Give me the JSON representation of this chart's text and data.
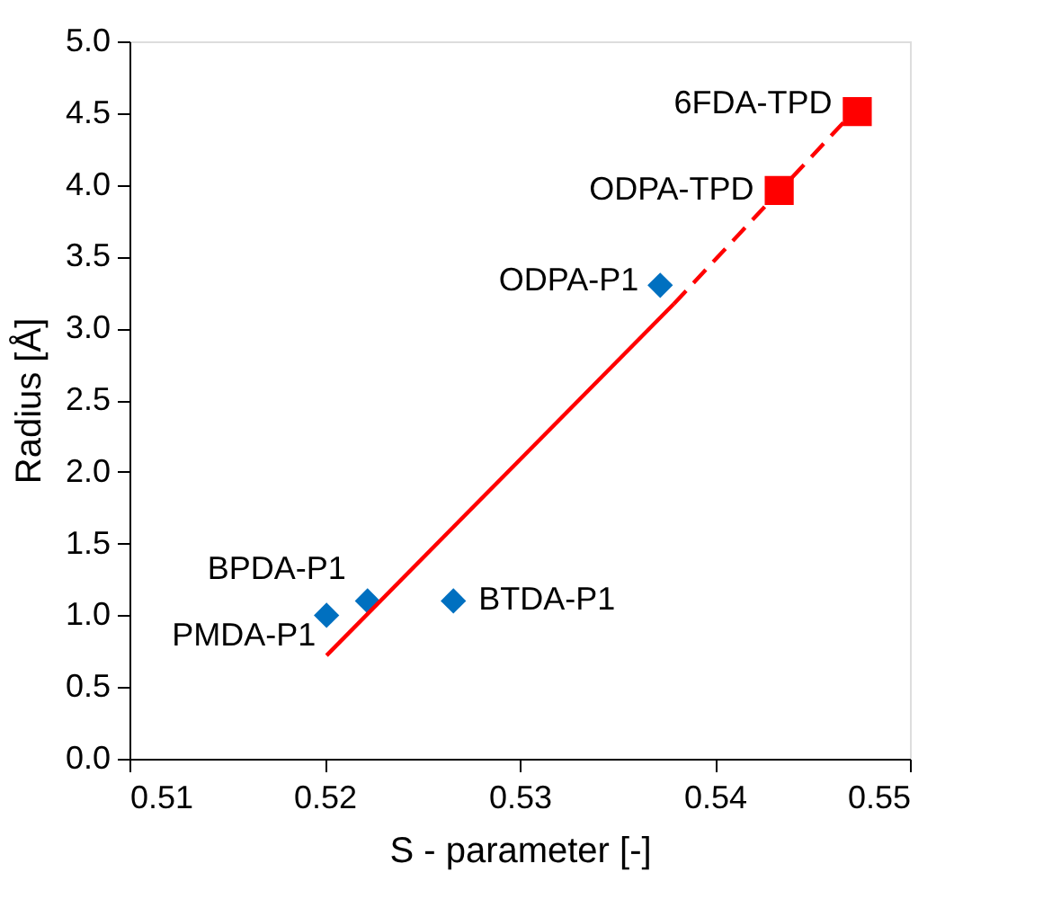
{
  "chart_data": {
    "type": "scatter",
    "xlabel": "S - parameter [-]",
    "ylabel": "Radius [Å]",
    "xlim": [
      0.51,
      0.55
    ],
    "xticks": [
      0.51,
      0.52,
      0.53,
      0.54,
      0.55
    ],
    "ylim": [
      0,
      5
    ],
    "yticks": [
      {
        "value": 0,
        "label": "0.0"
      },
      {
        "value": 0.5,
        "label": "0.5"
      },
      {
        "value": 1,
        "label": "1.0"
      },
      {
        "value": 1.5,
        "label": "1.5"
      },
      {
        "value": 2,
        "label": "2.0"
      },
      {
        "value": 2.5,
        "label": "2.5"
      },
      {
        "value": 3,
        "label": "3.0"
      },
      {
        "value": 3.5,
        "label": "3.5"
      },
      {
        "value": 4,
        "label": "4.0"
      },
      {
        "value": 4.5,
        "label": "4.5"
      },
      {
        "value": 5,
        "label": "5.0"
      }
    ],
    "grid": false,
    "legend": false,
    "series": [
      {
        "type": "scatter",
        "marker": "diamond",
        "color": "#0070c0",
        "x": [
          0.5201,
          0.5222,
          0.5266,
          0.5372
        ],
        "values": [
          1.0,
          1.1,
          1.1,
          3.3
        ]
      },
      {
        "type": "scatter",
        "marker": "square",
        "color": "#ff0000",
        "x": [
          0.5433,
          0.5473
        ],
        "values": [
          3.96,
          4.51
        ]
      },
      {
        "type": "line",
        "line_style": "solid",
        "color": "#ff0000",
        "x": [
          0.5201,
          0.5379
        ],
        "values": [
          0.72,
          3.17
        ]
      },
      {
        "type": "line",
        "line_style": "dashed",
        "color": "#ff0000",
        "x": [
          0.5379,
          0.5467
        ],
        "values": [
          3.17,
          4.45
        ]
      }
    ],
    "annotations": [
      {
        "text": "PMDA-P1",
        "x": 0.5201,
        "y": 1.0
      },
      {
        "text": "BPDA-P1",
        "x": 0.5222,
        "y": 1.1
      },
      {
        "text": "BTDA-P1",
        "x": 0.5266,
        "y": 1.1
      },
      {
        "text": "ODPA-P1",
        "x": 0.5372,
        "y": 3.3
      },
      {
        "text": "ODPA-TPD",
        "x": 0.5433,
        "y": 3.96
      },
      {
        "text": "6FDA-TPD",
        "x": 0.5473,
        "y": 4.51
      }
    ]
  }
}
